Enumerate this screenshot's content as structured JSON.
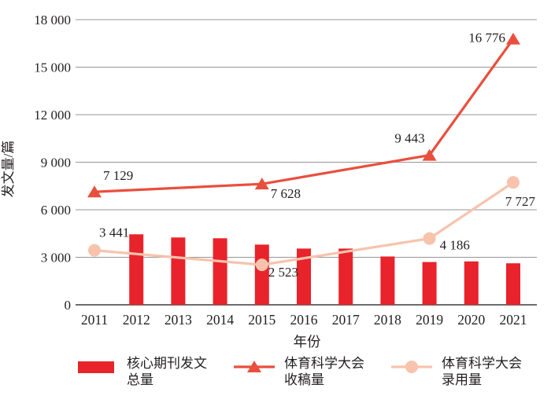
{
  "chart_data": {
    "type": "bar+line",
    "title": "",
    "xlabel": "年份",
    "ylabel": "发文量/篇",
    "ylim": [
      0,
      18000
    ],
    "ytick_step": 3000,
    "ytick_labels": [
      "0",
      "3 000",
      "6 000",
      "9 000",
      "12 000",
      "15 000",
      "18 000"
    ],
    "categories": [
      "2011",
      "2012",
      "2013",
      "2014",
      "2015",
      "2016",
      "2017",
      "2018",
      "2019",
      "2020",
      "2021"
    ],
    "grid": "horizontal",
    "legend_position": "bottom",
    "text_color": "#231f20",
    "grid_color": "#969696",
    "axis_color": "#3c3c3c",
    "series": [
      {
        "name": "核心期刊发文总量",
        "legend_label_lines": [
          "核心期刊发文",
          "总量"
        ],
        "type": "bar",
        "color": "#e8232b",
        "values": [
          null,
          4450,
          4250,
          4200,
          3800,
          3550,
          3550,
          3050,
          2700,
          2740,
          2620
        ]
      },
      {
        "name": "体育科学大会收稿量",
        "legend_label_lines": [
          "体育科学大会",
          "收稿量"
        ],
        "type": "line",
        "marker": "triangle",
        "color": "#e94f3d",
        "points": [
          {
            "x": "2011",
            "y": 7129,
            "label": "7 129",
            "label_anchor": "start",
            "label_dx": 11,
            "label_dy": -15
          },
          {
            "x": "2015",
            "y": 7628,
            "label": "7 628",
            "label_anchor": "start",
            "label_dx": 11,
            "label_dy": 18
          },
          {
            "x": "2019",
            "y": 9443,
            "label": "9 443",
            "label_anchor": "end",
            "label_dx": -6,
            "label_dy": -16
          },
          {
            "x": "2021",
            "y": 16776,
            "label": "16 776",
            "label_anchor": "end",
            "label_dx": -10,
            "label_dy": 4
          }
        ]
      },
      {
        "name": "体育科学大会录用量",
        "legend_label_lines": [
          "体育科学大会",
          "录用量"
        ],
        "type": "line",
        "marker": "circle",
        "color": "#f7c3ad",
        "points": [
          {
            "x": "2011",
            "y": 3441,
            "label": "3 441",
            "label_anchor": "start",
            "label_dx": 6,
            "label_dy": -17
          },
          {
            "x": "2015",
            "y": 2523,
            "label": "2 523",
            "label_anchor": "start",
            "label_dx": 8,
            "label_dy": 15
          },
          {
            "x": "2019",
            "y": 4186,
            "label": "4 186",
            "label_anchor": "start",
            "label_dx": 13,
            "label_dy": 14
          },
          {
            "x": "2021",
            "y": 7727,
            "label": "7 727",
            "label_anchor": "end",
            "label_dx": 28,
            "label_dy": 30
          }
        ]
      }
    ]
  }
}
